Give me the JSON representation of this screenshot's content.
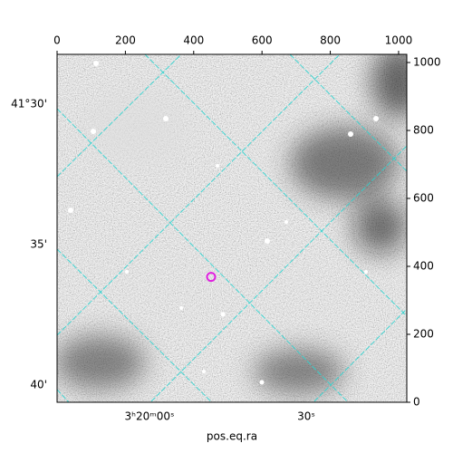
{
  "chart_data": {
    "type": "image",
    "xlabel": "pos.eq.ra",
    "xlim": [
      0,
      1024
    ],
    "ylim": [
      0,
      1024
    ],
    "xticks": [
      0,
      200,
      400,
      600,
      800,
      1000
    ],
    "yticks": [
      0,
      200,
      400,
      600,
      800,
      1000
    ],
    "ra_tick_labels": [
      "3ʰ20ᵐ00ˢ",
      "30ˢ"
    ],
    "dec_tick_labels": [
      "41°30'",
      "35'",
      "40'"
    ],
    "marker": {
      "x": 451,
      "y": 369,
      "color": "#e020e0"
    }
  }
}
